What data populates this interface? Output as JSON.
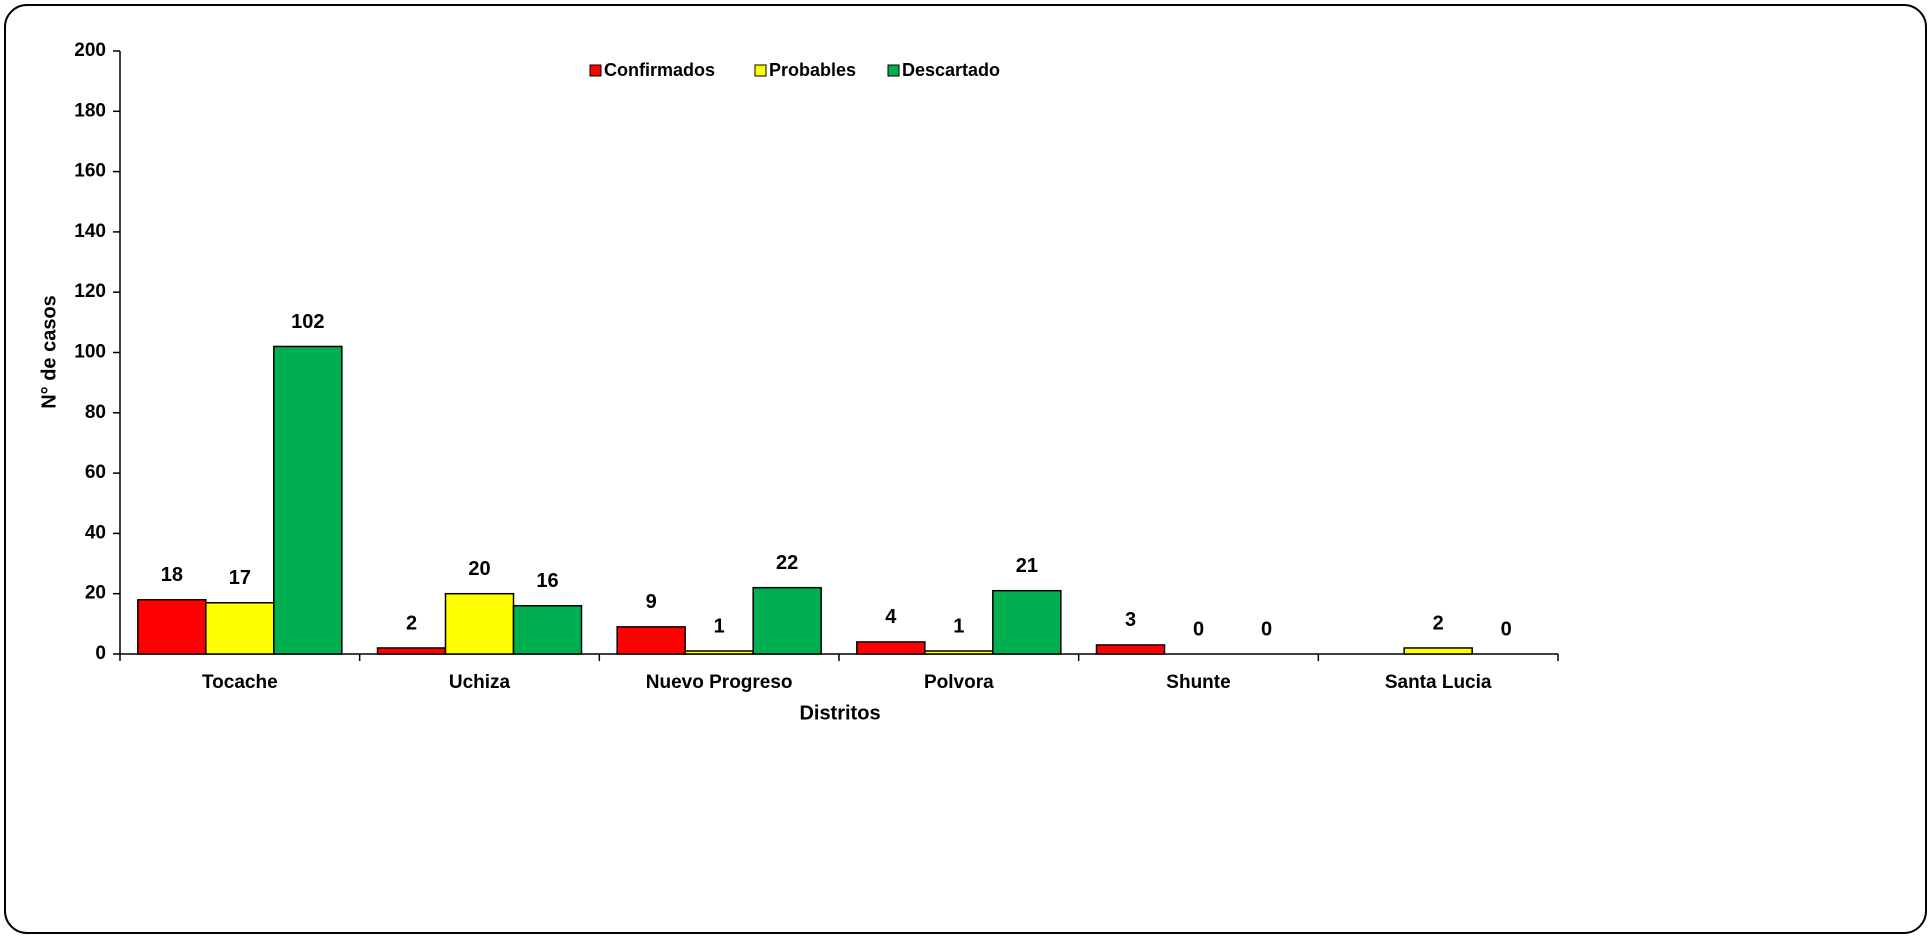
{
  "chart_data": {
    "type": "bar",
    "x_label": "Distritos",
    "y_label": "N° de casos",
    "categories": [
      "Tocache",
      "Uchiza",
      "Nuevo Progreso",
      "Polvora",
      "Shunte",
      "Santa Lucia"
    ],
    "series": [
      {
        "name": "Confirmados",
        "color": "#ff0000",
        "values": [
          18,
          2,
          9,
          4,
          3,
          null
        ]
      },
      {
        "name": "Probables",
        "color": "#ffff00",
        "values": [
          17,
          20,
          1,
          1,
          0,
          2
        ]
      },
      {
        "name": "Descartado",
        "color": "#00b050",
        "values": [
          102,
          16,
          22,
          21,
          0,
          0
        ]
      }
    ],
    "ylim": [
      0,
      200
    ],
    "yticks": [
      0,
      20,
      40,
      60,
      80,
      100,
      120,
      140,
      160,
      180,
      200
    ],
    "legend": "top",
    "grid": false
  }
}
